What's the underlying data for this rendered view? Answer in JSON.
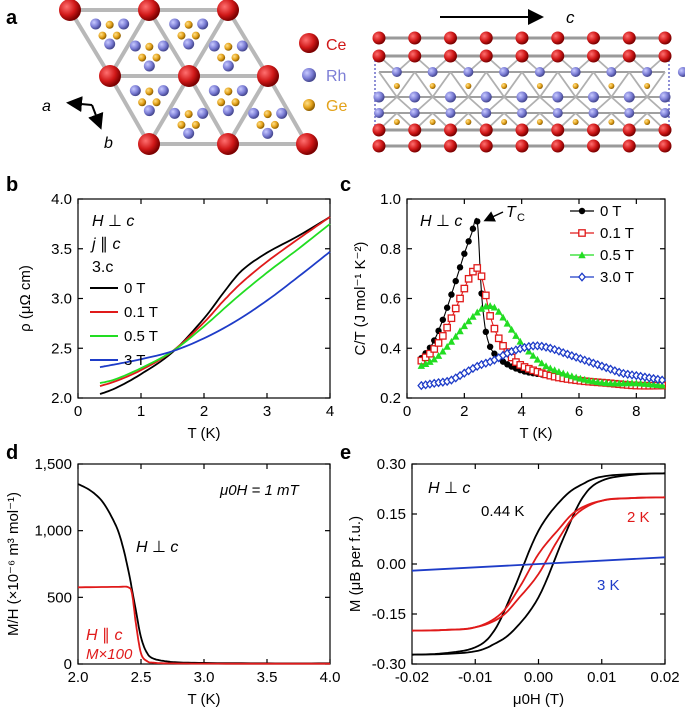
{
  "chart_data": [
    {
      "panel": "a",
      "type": "other",
      "description_labels": {
        "legend": [
          {
            "element": "Ce",
            "color": "#d01818"
          },
          {
            "element": "Rh",
            "color": "#7c7ed6"
          },
          {
            "element": "Ge",
            "color": "#e3a21a"
          }
        ],
        "axis_a": "a",
        "axis_b": "b",
        "axis_c": "c"
      }
    },
    {
      "panel": "b",
      "type": "line",
      "xlabel": "T (K)",
      "ylabel": "ρ (μΩ cm)",
      "xlim": [
        0,
        4
      ],
      "ylim": [
        2.0,
        4.0
      ],
      "xticks": [
        0,
        1,
        2,
        3,
        4
      ],
      "yticks": [
        2.0,
        2.5,
        3.0,
        3.5,
        4.0
      ],
      "annotations": [
        "H ⊥ c",
        "j ∥ c"
      ],
      "series": [
        {
          "name": "0 T",
          "color": "#000000",
          "x": [
            0.35,
            0.6,
            1.0,
            1.5,
            2.0,
            2.3,
            2.6,
            3.0,
            3.5,
            4.0
          ],
          "y": [
            2.04,
            2.1,
            2.24,
            2.46,
            2.8,
            3.05,
            3.28,
            3.46,
            3.63,
            3.82
          ]
        },
        {
          "name": "0.1 T",
          "color": "#e01a1a",
          "x": [
            0.35,
            0.6,
            1.0,
            1.5,
            2.0,
            2.3,
            2.6,
            3.0,
            3.5,
            4.0
          ],
          "y": [
            2.12,
            2.17,
            2.28,
            2.47,
            2.76,
            2.97,
            3.16,
            3.37,
            3.6,
            3.82
          ]
        },
        {
          "name": "0.5 T",
          "color": "#22dd22",
          "x": [
            0.35,
            0.6,
            1.0,
            1.5,
            2.0,
            2.5,
            3.0,
            3.5,
            4.0
          ],
          "y": [
            2.15,
            2.19,
            2.3,
            2.47,
            2.72,
            3.0,
            3.26,
            3.5,
            3.75
          ]
        },
        {
          "name": "3 T",
          "color": "#1e3cc8",
          "x": [
            0.35,
            0.6,
            1.0,
            1.5,
            2.0,
            2.5,
            3.0,
            3.5,
            4.0
          ],
          "y": [
            2.31,
            2.34,
            2.39,
            2.47,
            2.6,
            2.77,
            2.98,
            3.22,
            3.47
          ]
        }
      ]
    },
    {
      "panel": "c",
      "type": "scatter",
      "xlabel": "T (K)",
      "ylabel": "C/T (J mol⁻¹ K⁻²)",
      "xlim": [
        0,
        9
      ],
      "ylim": [
        0.2,
        1.0
      ],
      "xticks": [
        0,
        2,
        4,
        6,
        8
      ],
      "yticks": [
        0.2,
        0.4,
        0.6,
        0.8,
        1.0
      ],
      "annotations": [
        "H ⊥ c",
        "TC"
      ],
      "series": [
        {
          "name": "0 T",
          "color": "#000000",
          "marker": "circle",
          "x": [
            0.5,
            0.9,
            1.3,
            1.7,
            2.0,
            2.25,
            2.45,
            2.6,
            2.8,
            3.2,
            4.0,
            5.0,
            6.0,
            7.0,
            8.0,
            9.0
          ],
          "y": [
            0.36,
            0.42,
            0.53,
            0.67,
            0.78,
            0.86,
            0.91,
            0.62,
            0.44,
            0.36,
            0.31,
            0.29,
            0.27,
            0.26,
            0.25,
            0.25
          ]
        },
        {
          "name": "0.1 T",
          "color": "#e01a1a",
          "marker": "square",
          "x": [
            0.5,
            0.9,
            1.3,
            1.7,
            2.0,
            2.25,
            2.5,
            2.7,
            2.9,
            3.2,
            3.6,
            4.0,
            5.0,
            6.0,
            7.0,
            8.0,
            9.0
          ],
          "y": [
            0.35,
            0.39,
            0.46,
            0.56,
            0.64,
            0.7,
            0.72,
            0.64,
            0.53,
            0.44,
            0.37,
            0.33,
            0.29,
            0.27,
            0.26,
            0.25,
            0.25
          ]
        },
        {
          "name": "0.5 T",
          "color": "#22dd22",
          "marker": "triangle",
          "x": [
            0.5,
            1.0,
            1.5,
            2.0,
            2.5,
            2.8,
            3.1,
            3.5,
            4.0,
            4.5,
            5.0,
            6.0,
            7.0,
            8.0,
            9.0
          ],
          "y": [
            0.33,
            0.36,
            0.42,
            0.49,
            0.55,
            0.57,
            0.56,
            0.5,
            0.42,
            0.36,
            0.32,
            0.28,
            0.26,
            0.26,
            0.25
          ]
        },
        {
          "name": "3.0 T",
          "color": "#1e3cc8",
          "marker": "diamond",
          "x": [
            0.5,
            1.0,
            1.5,
            2.0,
            2.5,
            3.0,
            3.5,
            4.0,
            4.5,
            5.0,
            5.5,
            6.0,
            6.5,
            7.0,
            7.5,
            8.0,
            8.5,
            9.0
          ],
          "y": [
            0.25,
            0.26,
            0.27,
            0.3,
            0.33,
            0.35,
            0.38,
            0.4,
            0.41,
            0.4,
            0.38,
            0.36,
            0.34,
            0.32,
            0.3,
            0.29,
            0.28,
            0.27
          ]
        }
      ]
    },
    {
      "panel": "d",
      "type": "line",
      "xlabel": "T (K)",
      "ylabel": "M/H (×10⁻⁶ m³ mol⁻¹)",
      "xlim": [
        2.0,
        4.0
      ],
      "ylim": [
        0,
        1500
      ],
      "xticks": [
        2.0,
        2.5,
        3.0,
        3.5,
        4.0
      ],
      "ytick_labels": [
        "0",
        "500",
        "1,000",
        "1,500"
      ],
      "yticks": [
        0,
        500,
        1000,
        1500
      ],
      "annotations": [
        "μ0H = 1 mT",
        "H ⊥ c",
        "H ∥ c",
        "M×100"
      ],
      "series": [
        {
          "name": "H ⊥ c",
          "color": "#000000",
          "x": [
            2.0,
            2.1,
            2.2,
            2.3,
            2.35,
            2.4,
            2.45,
            2.5,
            2.55,
            2.6,
            2.7,
            2.8,
            3.0,
            3.5,
            4.0
          ],
          "y": [
            1350,
            1300,
            1210,
            1040,
            900,
            700,
            450,
            200,
            80,
            40,
            20,
            12,
            8,
            5,
            5
          ]
        },
        {
          "name": "H ∥ c M×100",
          "color": "#e01a1a",
          "x": [
            2.0,
            2.3,
            2.4,
            2.43,
            2.46,
            2.5,
            2.55,
            2.6,
            2.7,
            3.0,
            3.5,
            4.0
          ],
          "y": [
            575,
            578,
            575,
            520,
            300,
            80,
            20,
            10,
            5,
            3,
            2,
            2
          ]
        }
      ]
    },
    {
      "panel": "e",
      "type": "line",
      "xlabel": "μ0H (T)",
      "ylabel": "M (μB per f.u.)",
      "xlim": [
        -0.02,
        0.02
      ],
      "ylim": [
        -0.3,
        0.3
      ],
      "xticks": [
        -0.02,
        -0.01,
        0.0,
        0.01,
        0.02
      ],
      "yticks": [
        -0.3,
        -0.15,
        0.0,
        0.15,
        0.3
      ],
      "annotations": [
        "H ⊥ c"
      ],
      "series": [
        {
          "name": "0.44 K",
          "color": "#000000",
          "hysteresis": true,
          "x_up": [
            -0.02,
            -0.015,
            -0.01,
            -0.007,
            -0.004,
            0.0,
            0.004,
            0.007,
            0.01,
            0.015,
            0.02
          ],
          "y_up": [
            -0.272,
            -0.27,
            -0.262,
            -0.24,
            -0.2,
            -0.1,
            0.08,
            0.2,
            0.25,
            0.268,
            0.272
          ],
          "x_down": [
            0.02,
            0.015,
            0.01,
            0.007,
            0.004,
            0.0,
            -0.004,
            -0.007,
            -0.01,
            -0.015,
            -0.02
          ],
          "y_down": [
            0.272,
            0.27,
            0.262,
            0.24,
            0.2,
            0.1,
            -0.08,
            -0.2,
            -0.25,
            -0.268,
            -0.272
          ]
        },
        {
          "name": "2 K",
          "color": "#e01a1a",
          "hysteresis": true,
          "x_up": [
            -0.02,
            -0.015,
            -0.01,
            -0.006,
            -0.003,
            0.0,
            0.003,
            0.006,
            0.01,
            0.015,
            0.02
          ],
          "y_up": [
            -0.2,
            -0.198,
            -0.19,
            -0.16,
            -0.1,
            -0.03,
            0.07,
            0.15,
            0.19,
            0.198,
            0.2
          ],
          "x_down": [
            0.02,
            0.015,
            0.01,
            0.006,
            0.003,
            0.0,
            -0.003,
            -0.006,
            -0.01,
            -0.015,
            -0.02
          ],
          "y_down": [
            0.2,
            0.198,
            0.19,
            0.16,
            0.1,
            0.03,
            -0.07,
            -0.15,
            -0.19,
            -0.198,
            -0.2
          ]
        },
        {
          "name": "3 K",
          "color": "#1e3cc8",
          "hysteresis": false,
          "x": [
            -0.02,
            0.02
          ],
          "y": [
            -0.02,
            0.02
          ]
        }
      ]
    }
  ],
  "panel_letters": [
    "a",
    "b",
    "c",
    "d",
    "e"
  ]
}
